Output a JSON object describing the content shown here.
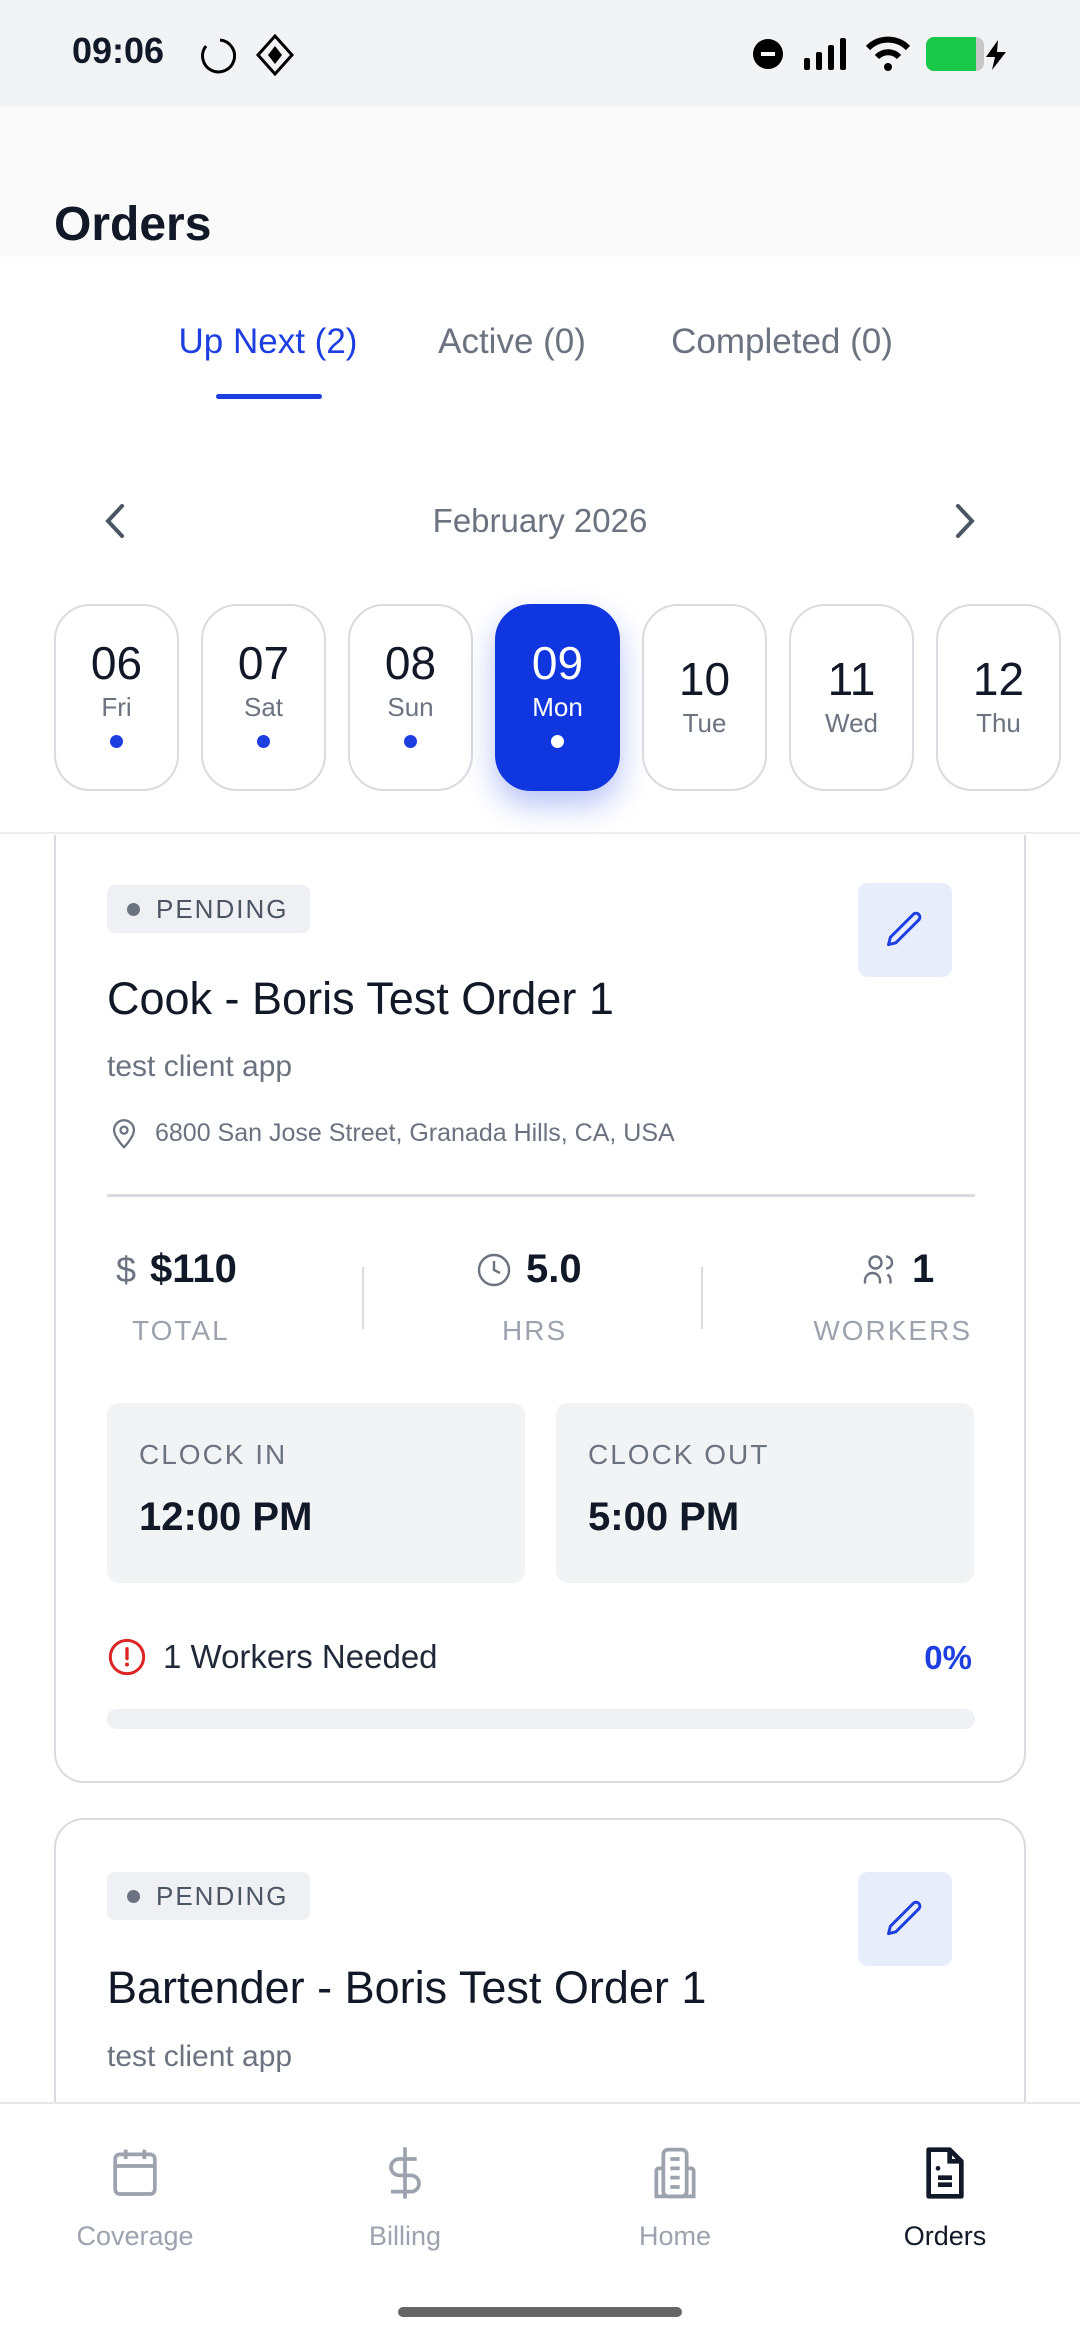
{
  "status_bar": {
    "time": "09:06"
  },
  "header": {
    "title": "Orders"
  },
  "tabs": [
    {
      "label": "Up Next (2)",
      "active": true
    },
    {
      "label": "Active (0)"
    },
    {
      "label": "Completed (0)"
    }
  ],
  "calendar": {
    "month": "February 2026",
    "days": [
      {
        "num": "06",
        "day": "Fri",
        "dot": true
      },
      {
        "num": "07",
        "day": "Sat",
        "dot": true
      },
      {
        "num": "08",
        "day": "Sun",
        "dot": true
      },
      {
        "num": "09",
        "day": "Mon",
        "dot": true,
        "selected": true
      },
      {
        "num": "10",
        "day": "Tue",
        "dot": false
      },
      {
        "num": "11",
        "day": "Wed",
        "dot": false
      },
      {
        "num": "12",
        "day": "Thu",
        "dot": false
      }
    ]
  },
  "orders": [
    {
      "status": "PENDING",
      "title": "Cook - Boris Test Order 1",
      "client": "test client app",
      "address": "6800 San Jose Street, Granada Hills, CA, USA",
      "total": "$110",
      "total_label": "TOTAL",
      "hours": "5.0",
      "hours_label": "HRS",
      "workers": "1",
      "workers_label": "WORKERS",
      "clock_in_label": "CLOCK IN",
      "clock_in": "12:00 PM",
      "clock_out_label": "CLOCK OUT",
      "clock_out": "5:00 PM",
      "needed": "1 Workers Needed",
      "fill_percent": "0%"
    },
    {
      "status": "PENDING",
      "title": "Bartender - Boris Test Order 1",
      "client": "test client app"
    }
  ],
  "nav": [
    {
      "label": "Coverage",
      "icon": "calendar-icon"
    },
    {
      "label": "Billing",
      "icon": "dollar-icon"
    },
    {
      "label": "Home",
      "icon": "building-icon"
    },
    {
      "label": "Orders",
      "icon": "document-icon",
      "active": true
    }
  ],
  "colors": {
    "accent": "#1036e0",
    "danger": "#dc2626",
    "battery": "#1ac94a"
  }
}
